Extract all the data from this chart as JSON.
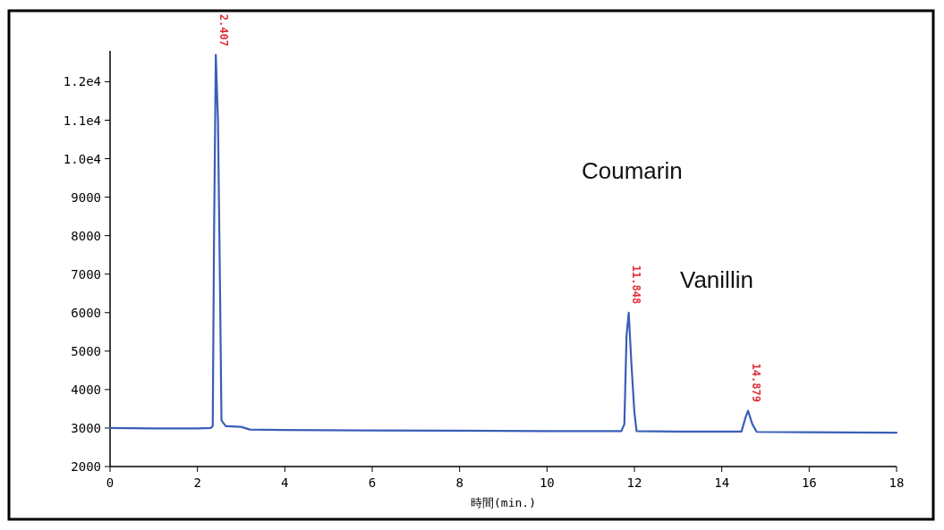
{
  "chart_data": {
    "type": "line",
    "xlabel": "時間(min.)",
    "color": "#3a5fb8",
    "x": [
      0,
      1,
      2,
      2.3,
      2.35,
      2.38,
      2.42,
      2.47,
      2.52,
      2.55,
      2.65,
      3.0,
      3.2,
      4,
      6,
      8,
      10,
      11.7,
      11.77,
      11.82,
      11.87,
      11.93,
      12.0,
      12.05,
      13,
      14.45,
      14.55,
      14.6,
      14.7,
      14.8,
      16,
      18
    ],
    "values": [
      3000,
      2990,
      2990,
      3000,
      3050,
      8000,
      12700,
      11000,
      6300,
      3200,
      3050,
      3030,
      2960,
      2950,
      2940,
      2930,
      2920,
      2920,
      3100,
      5400,
      6000,
      4700,
      3400,
      2920,
      2910,
      2910,
      3300,
      3450,
      3100,
      2900,
      2890,
      2880
    ],
    "xlim": [
      0,
      18
    ],
    "ylim": [
      2000,
      12800
    ],
    "xticks": [
      0,
      2,
      4,
      6,
      8,
      10,
      12,
      14,
      16,
      18
    ],
    "yticks": [
      2000,
      3000,
      4000,
      5000,
      6000,
      7000,
      8000,
      9000,
      {
        "value": 10000,
        "label": "1.0e4"
      },
      {
        "value": 11000,
        "label": "1.1e4"
      },
      {
        "value": 12000,
        "label": "1.2e4"
      }
    ],
    "annotations": [
      {
        "text": "2.407",
        "x": 2.407,
        "y": 12700
      },
      {
        "text": "11.848",
        "x": 11.848,
        "y": 6000
      },
      {
        "text": "14.879",
        "x": 14.6,
        "y": 3450
      },
      "Coumarin",
      "Vanillin"
    ]
  }
}
